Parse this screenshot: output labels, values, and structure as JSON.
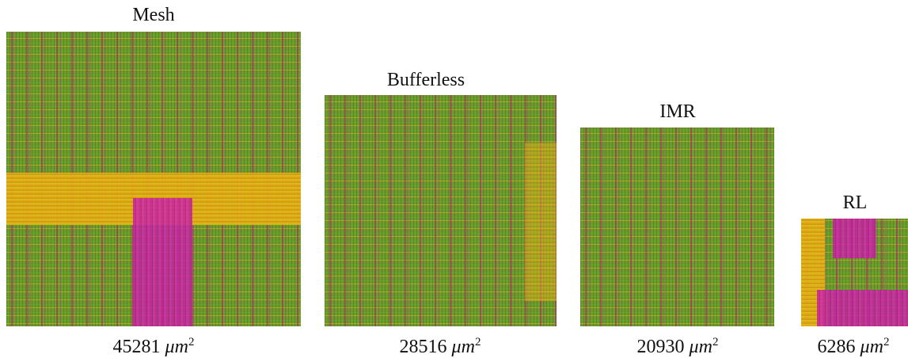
{
  "panels": [
    {
      "title": "Mesh",
      "area": "45281",
      "unit": "μm",
      "exponent": "2"
    },
    {
      "title": "Bufferless",
      "area": "28516",
      "unit": "μm",
      "exponent": "2"
    },
    {
      "title": "IMR",
      "area": "20930",
      "unit": "μm",
      "exponent": "2"
    },
    {
      "title": "RL",
      "area": "6286",
      "unit": "μm",
      "exponent": "2"
    }
  ]
}
